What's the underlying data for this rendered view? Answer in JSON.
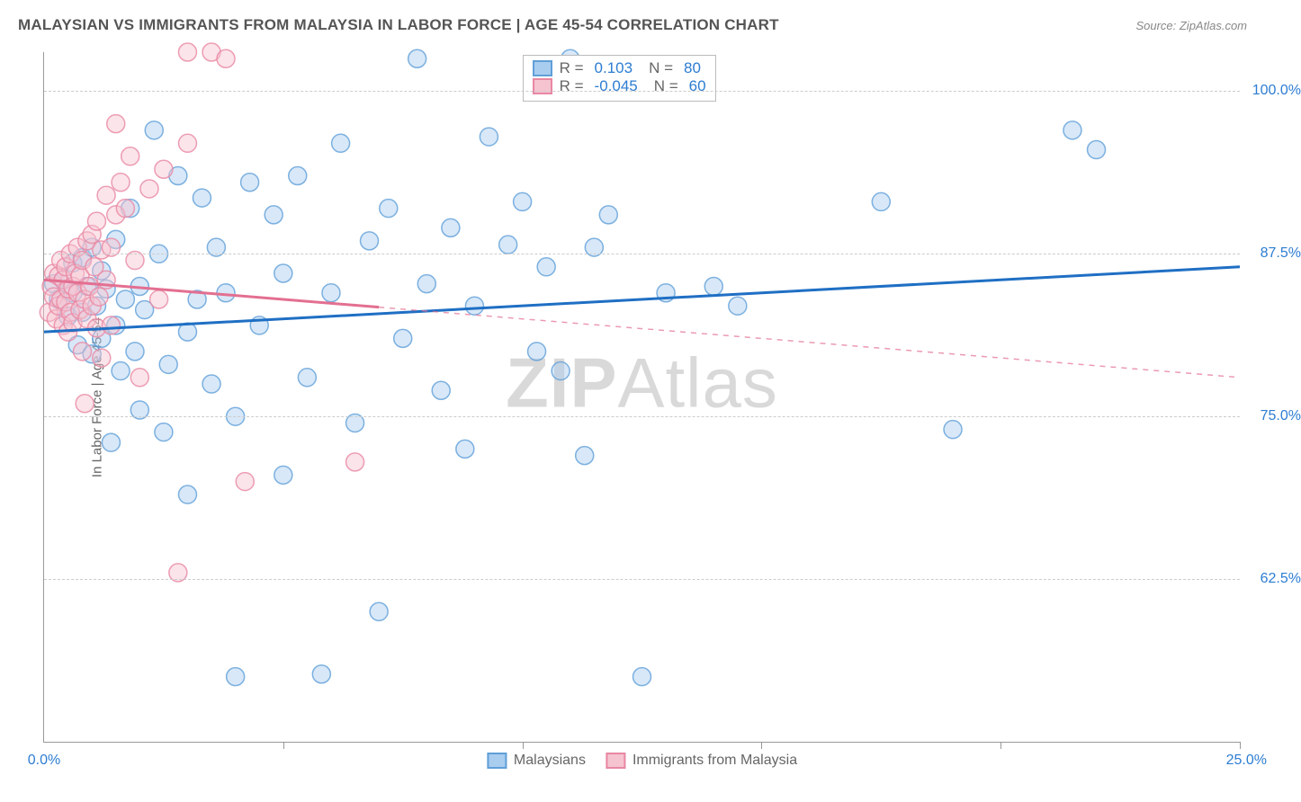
{
  "title": "MALAYSIAN VS IMMIGRANTS FROM MALAYSIA IN LABOR FORCE | AGE 45-54 CORRELATION CHART",
  "source": "Source: ZipAtlas.com",
  "y_axis_title": "In Labor Force | Age 45-54",
  "watermark_bold": "ZIP",
  "watermark_rest": "Atlas",
  "chart": {
    "type": "scatter",
    "background_color": "#ffffff",
    "grid_color": "#cccccc",
    "grid_dashed": true,
    "axis_color": "#999999",
    "label_color": "#2d7dd2",
    "text_color": "#666666",
    "x": {
      "min": 0,
      "max": 25,
      "tick_step": 5,
      "min_label": "0.0%",
      "max_label": "25.0%"
    },
    "y": {
      "min": 50,
      "max": 103,
      "ticks": [
        62.5,
        75.0,
        87.5,
        100.0
      ],
      "tick_labels": [
        "62.5%",
        "75.0%",
        "87.5%",
        "100.0%"
      ]
    },
    "marker_radius": 10,
    "marker_opacity": 0.45,
    "trend_line_width": 3,
    "series": [
      {
        "name": "Malaysians",
        "fill": "#a9cdef",
        "stroke": "#5f9fd8",
        "line_color": "#1f6fc4",
        "R": "0.103",
        "N": "80",
        "trend": {
          "x1": 0,
          "y1": 81.5,
          "x2": 25,
          "y2": 86.5,
          "dash_after_x": null
        },
        "points": [
          [
            0.2,
            85.2
          ],
          [
            0.3,
            84.0
          ],
          [
            0.4,
            85.5
          ],
          [
            0.5,
            82.7
          ],
          [
            0.6,
            86.8
          ],
          [
            0.6,
            84.5
          ],
          [
            0.7,
            80.5
          ],
          [
            0.8,
            83.0
          ],
          [
            0.8,
            87.2
          ],
          [
            0.9,
            85.0
          ],
          [
            1.0,
            79.8
          ],
          [
            1.0,
            88.0
          ],
          [
            1.1,
            83.5
          ],
          [
            1.2,
            81.0
          ],
          [
            1.2,
            86.2
          ],
          [
            1.3,
            84.8
          ],
          [
            1.4,
            73.0
          ],
          [
            1.5,
            88.6
          ],
          [
            1.5,
            82.0
          ],
          [
            1.6,
            78.5
          ],
          [
            1.7,
            84.0
          ],
          [
            1.8,
            91.0
          ],
          [
            1.9,
            80.0
          ],
          [
            2.0,
            75.5
          ],
          [
            2.0,
            85.0
          ],
          [
            2.1,
            83.2
          ],
          [
            2.3,
            97.0
          ],
          [
            2.4,
            87.5
          ],
          [
            2.5,
            73.8
          ],
          [
            2.6,
            79.0
          ],
          [
            2.8,
            93.5
          ],
          [
            3.0,
            69.0
          ],
          [
            3.0,
            81.5
          ],
          [
            3.2,
            84.0
          ],
          [
            3.3,
            91.8
          ],
          [
            3.5,
            77.5
          ],
          [
            3.6,
            88.0
          ],
          [
            3.8,
            84.5
          ],
          [
            4.0,
            75.0
          ],
          [
            4.0,
            55.0
          ],
          [
            4.3,
            93.0
          ],
          [
            4.5,
            82.0
          ],
          [
            4.8,
            90.5
          ],
          [
            5.0,
            86.0
          ],
          [
            5.0,
            70.5
          ],
          [
            5.3,
            93.5
          ],
          [
            5.5,
            78.0
          ],
          [
            5.8,
            55.2
          ],
          [
            6.0,
            84.5
          ],
          [
            6.2,
            96.0
          ],
          [
            6.5,
            74.5
          ],
          [
            6.8,
            88.5
          ],
          [
            7.0,
            60.0
          ],
          [
            7.2,
            91.0
          ],
          [
            7.5,
            81.0
          ],
          [
            7.8,
            102.5
          ],
          [
            8.0,
            85.2
          ],
          [
            8.3,
            77.0
          ],
          [
            8.5,
            89.5
          ],
          [
            8.8,
            72.5
          ],
          [
            9.0,
            83.5
          ],
          [
            9.3,
            96.5
          ],
          [
            9.7,
            88.2
          ],
          [
            10.0,
            91.5
          ],
          [
            10.3,
            80.0
          ],
          [
            10.5,
            86.5
          ],
          [
            10.8,
            78.5
          ],
          [
            11.0,
            102.5
          ],
          [
            11.3,
            72.0
          ],
          [
            11.5,
            88.0
          ],
          [
            11.8,
            90.5
          ],
          [
            12.3,
            102.0
          ],
          [
            12.5,
            55.0
          ],
          [
            13.0,
            84.5
          ],
          [
            14.0,
            85.0
          ],
          [
            14.5,
            83.5
          ],
          [
            17.5,
            91.5
          ],
          [
            19.0,
            74.0
          ],
          [
            21.5,
            97.0
          ],
          [
            22.0,
            95.5
          ]
        ]
      },
      {
        "name": "Immigrants from Malaysia",
        "fill": "#f6c3d1",
        "stroke": "#e887a3",
        "line_color": "#e36f91",
        "R": "-0.045",
        "N": "60",
        "trend": {
          "x1": 0,
          "y1": 85.5,
          "x2": 25,
          "y2": 78.0,
          "dash_after_x": 7.0
        },
        "points": [
          [
            0.1,
            83.0
          ],
          [
            0.15,
            85.0
          ],
          [
            0.2,
            84.2
          ],
          [
            0.2,
            86.0
          ],
          [
            0.25,
            82.5
          ],
          [
            0.3,
            85.8
          ],
          [
            0.3,
            83.5
          ],
          [
            0.35,
            87.0
          ],
          [
            0.35,
            84.0
          ],
          [
            0.4,
            82.0
          ],
          [
            0.4,
            85.5
          ],
          [
            0.45,
            83.8
          ],
          [
            0.45,
            86.5
          ],
          [
            0.5,
            81.5
          ],
          [
            0.5,
            84.8
          ],
          [
            0.55,
            87.5
          ],
          [
            0.55,
            83.0
          ],
          [
            0.6,
            85.0
          ],
          [
            0.6,
            82.2
          ],
          [
            0.65,
            86.0
          ],
          [
            0.7,
            84.5
          ],
          [
            0.7,
            88.0
          ],
          [
            0.75,
            83.2
          ],
          [
            0.75,
            85.8
          ],
          [
            0.8,
            80.0
          ],
          [
            0.8,
            87.0
          ],
          [
            0.85,
            84.0
          ],
          [
            0.85,
            76.0
          ],
          [
            0.9,
            88.5
          ],
          [
            0.9,
            82.5
          ],
          [
            0.95,
            85.0
          ],
          [
            1.0,
            89.0
          ],
          [
            1.0,
            83.5
          ],
          [
            1.05,
            86.5
          ],
          [
            1.1,
            81.8
          ],
          [
            1.1,
            90.0
          ],
          [
            1.15,
            84.2
          ],
          [
            1.2,
            87.8
          ],
          [
            1.2,
            79.5
          ],
          [
            1.3,
            92.0
          ],
          [
            1.3,
            85.5
          ],
          [
            1.4,
            88.0
          ],
          [
            1.4,
            82.0
          ],
          [
            1.5,
            97.5
          ],
          [
            1.5,
            90.5
          ],
          [
            1.6,
            93.0
          ],
          [
            1.7,
            91.0
          ],
          [
            1.8,
            95.0
          ],
          [
            1.9,
            87.0
          ],
          [
            2.0,
            78.0
          ],
          [
            2.2,
            92.5
          ],
          [
            2.4,
            84.0
          ],
          [
            2.5,
            94.0
          ],
          [
            2.8,
            63.0
          ],
          [
            3.0,
            103.0
          ],
          [
            3.0,
            96.0
          ],
          [
            3.5,
            103.0
          ],
          [
            3.8,
            102.5
          ],
          [
            4.2,
            70.0
          ],
          [
            6.5,
            71.5
          ]
        ]
      }
    ]
  }
}
